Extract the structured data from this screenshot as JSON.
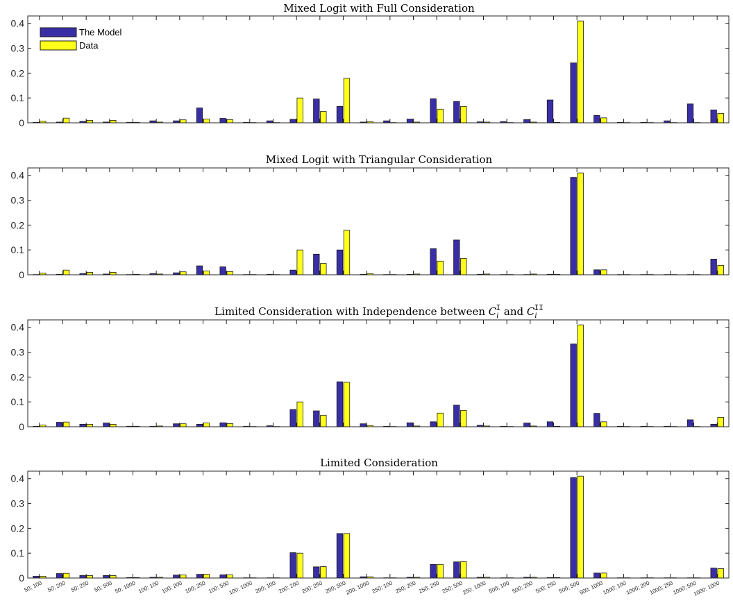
{
  "colors": {
    "model": "#3a2ea6",
    "data": "#ffff1a",
    "edge": "#1a1a1a"
  },
  "legend": {
    "model_label": "The Model",
    "data_label": "Data"
  },
  "chart_data": [
    {
      "type": "bar",
      "title": "Mixed Logit with Full Consideration",
      "ylim": [
        0,
        0.43
      ],
      "yticks": [
        "0",
        "0.1",
        "0.2",
        "0.3",
        "0.4"
      ],
      "categories": [
        "50; 100",
        "50; 200",
        "50; 250",
        "50; 500",
        "50; 1000",
        "100; 100",
        "100; 200",
        "100; 250",
        "100; 500",
        "100; 1000",
        "200; 100",
        "200; 200",
        "200; 250",
        "200; 500",
        "200; 1000",
        "250; 100",
        "250; 200",
        "250; 250",
        "250; 500",
        "250; 1000",
        "500; 100",
        "500; 200",
        "500; 250",
        "500; 500",
        "500; 1000",
        "1000; 100",
        "1000; 200",
        "1000; 250",
        "1000; 500",
        "1000; 1000"
      ],
      "series": [
        {
          "name": "The Model",
          "values": [
            0.002,
            0.003,
            0.006,
            0.003,
            0.002,
            0.008,
            0.008,
            0.06,
            0.018,
            0.002,
            0.008,
            0.014,
            0.096,
            0.066,
            0.003,
            0.008,
            0.015,
            0.097,
            0.086,
            0.004,
            0.005,
            0.013,
            0.092,
            0.241,
            0.03,
            0.002,
            0.002,
            0.008,
            0.076,
            0.052
          ]
        },
        {
          "name": "Data",
          "values": [
            0.007,
            0.019,
            0.01,
            0.01,
            0.002,
            0.003,
            0.012,
            0.015,
            0.013,
            0.001,
            0.001,
            0.1,
            0.046,
            0.179,
            0.005,
            0.001,
            0.003,
            0.055,
            0.066,
            0.003,
            0.001,
            0.003,
            0.002,
            0.41,
            0.02,
            0.001,
            0.001,
            0.001,
            0.001,
            0.038
          ]
        }
      ]
    },
    {
      "type": "bar",
      "title": "Mixed Logit with Triangular Consideration",
      "ylim": [
        0,
        0.43
      ],
      "yticks": [
        "0",
        "0.1",
        "0.2",
        "0.3",
        "0.4"
      ],
      "categories": [
        "50; 100",
        "50; 200",
        "50; 250",
        "50; 500",
        "50; 1000",
        "100; 100",
        "100; 200",
        "100; 250",
        "100; 500",
        "100; 1000",
        "200; 100",
        "200; 200",
        "200; 250",
        "200; 500",
        "200; 1000",
        "250; 100",
        "250; 200",
        "250; 250",
        "250; 500",
        "250; 1000",
        "500; 100",
        "500; 200",
        "500; 250",
        "500; 500",
        "500; 1000",
        "1000; 100",
        "1000; 200",
        "1000; 250",
        "1000; 500",
        "1000; 1000"
      ],
      "series": [
        {
          "name": "The Model",
          "values": [
            0.001,
            0.002,
            0.005,
            0.003,
            0.001,
            0.005,
            0.008,
            0.036,
            0.032,
            0.001,
            0.002,
            0.019,
            0.083,
            0.1,
            0.002,
            0.001,
            0.002,
            0.105,
            0.14,
            0.002,
            0.001,
            0.001,
            0.002,
            0.392,
            0.02,
            0.001,
            0.001,
            0.001,
            0.001,
            0.063
          ]
        },
        {
          "name": "Data",
          "values": [
            0.007,
            0.019,
            0.01,
            0.01,
            0.002,
            0.003,
            0.012,
            0.015,
            0.013,
            0.001,
            0.001,
            0.1,
            0.046,
            0.179,
            0.005,
            0.001,
            0.003,
            0.055,
            0.066,
            0.003,
            0.001,
            0.003,
            0.002,
            0.41,
            0.02,
            0.001,
            0.001,
            0.001,
            0.001,
            0.038
          ]
        }
      ]
    },
    {
      "type": "bar",
      "title": "Limited Consideration with Independence between C_i^I and C_i^II",
      "ylim": [
        0,
        0.43
      ],
      "yticks": [
        "0",
        "0.1",
        "0.2",
        "0.3",
        "0.4"
      ],
      "categories": [
        "50; 100",
        "50; 200",
        "50; 250",
        "50; 500",
        "50; 1000",
        "100; 100",
        "100; 200",
        "100; 250",
        "100; 500",
        "100; 1000",
        "200; 100",
        "200; 200",
        "200; 250",
        "200; 500",
        "200; 1000",
        "250; 100",
        "250; 200",
        "250; 250",
        "250; 500",
        "250; 1000",
        "500; 100",
        "500; 200",
        "500; 250",
        "500; 500",
        "500; 1000",
        "1000; 100",
        "1000; 200",
        "1000; 250",
        "1000; 500",
        "1000; 1000"
      ],
      "series": [
        {
          "name": "The Model",
          "values": [
            0.002,
            0.018,
            0.01,
            0.015,
            0.002,
            0.002,
            0.012,
            0.01,
            0.016,
            0.002,
            0.004,
            0.069,
            0.064,
            0.181,
            0.012,
            0.002,
            0.016,
            0.02,
            0.087,
            0.006,
            0.002,
            0.015,
            0.02,
            0.333,
            0.054,
            0.002,
            0.002,
            0.002,
            0.028,
            0.01
          ]
        },
        {
          "name": "Data",
          "values": [
            0.007,
            0.019,
            0.01,
            0.01,
            0.002,
            0.003,
            0.012,
            0.015,
            0.013,
            0.001,
            0.001,
            0.1,
            0.046,
            0.179,
            0.005,
            0.001,
            0.003,
            0.055,
            0.066,
            0.003,
            0.001,
            0.003,
            0.002,
            0.41,
            0.02,
            0.001,
            0.001,
            0.001,
            0.001,
            0.038
          ]
        }
      ]
    },
    {
      "type": "bar",
      "title": "Limited Consideration",
      "ylim": [
        0,
        0.43
      ],
      "yticks": [
        "0",
        "0.1",
        "0.2",
        "0.3",
        "0.4"
      ],
      "categories": [
        "50; 100",
        "50; 200",
        "50; 250",
        "50; 500",
        "50; 1000",
        "100; 100",
        "100; 200",
        "100; 250",
        "100; 500",
        "100; 1000",
        "200; 100",
        "200; 200",
        "200; 250",
        "200; 500",
        "200; 1000",
        "250; 100",
        "250; 200",
        "250; 250",
        "250; 500",
        "250; 1000",
        "500; 100",
        "500; 200",
        "500; 250",
        "500; 500",
        "500; 1000",
        "1000; 100",
        "1000; 200",
        "1000; 250",
        "1000; 500",
        "1000; 1000"
      ],
      "series": [
        {
          "name": "The Model",
          "values": [
            0.007,
            0.018,
            0.01,
            0.01,
            0.002,
            0.003,
            0.012,
            0.015,
            0.013,
            0.001,
            0.001,
            0.102,
            0.045,
            0.179,
            0.005,
            0.001,
            0.003,
            0.055,
            0.065,
            0.003,
            0.001,
            0.003,
            0.002,
            0.404,
            0.02,
            0.001,
            0.001,
            0.001,
            0.001,
            0.04
          ]
        },
        {
          "name": "Data",
          "values": [
            0.007,
            0.019,
            0.01,
            0.01,
            0.002,
            0.003,
            0.012,
            0.015,
            0.013,
            0.001,
            0.001,
            0.1,
            0.046,
            0.179,
            0.005,
            0.001,
            0.003,
            0.055,
            0.066,
            0.003,
            0.001,
            0.003,
            0.002,
            0.41,
            0.02,
            0.001,
            0.001,
            0.001,
            0.001,
            0.038
          ]
        }
      ]
    }
  ]
}
